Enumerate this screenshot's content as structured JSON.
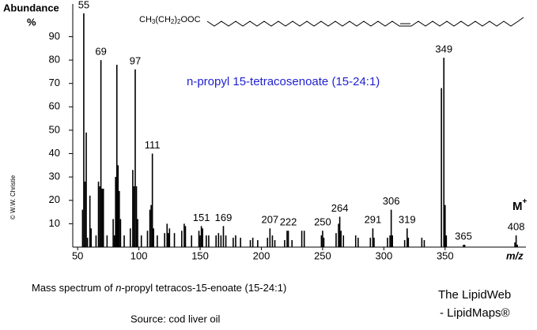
{
  "chart_data": {
    "type": "spectrum",
    "y_label": "Abundance",
    "y_unit": "%",
    "x_label": "m/z",
    "title": "n-propyl 15-tetracosenoate  (15-24:1)",
    "title_color": "#1f1fd0",
    "formula": [
      "CH",
      "3",
      "(CH",
      "2",
      ")",
      "2",
      "OOC"
    ],
    "molecular_ion": [
      "M",
      "+"
    ],
    "caption": [
      "Mass spectrum of ",
      "n",
      "-propyl tetracos-15-enoate  (15-24:1)"
    ],
    "source": "Source: cod liver oil",
    "brand": [
      "The LipidWeb",
      "- LipidMaps®"
    ],
    "copyright": "© W.W. Christie",
    "xlim": [
      46,
      416
    ],
    "ylim": [
      0,
      104
    ],
    "xticks": [
      50,
      100,
      150,
      200,
      250,
      300,
      350
    ],
    "yticks": [
      10,
      20,
      30,
      40,
      50,
      60,
      70,
      80,
      90
    ],
    "peaks": {
      "x": [
        55,
        69,
        97,
        111,
        151,
        169,
        207,
        222,
        250,
        264,
        291,
        306,
        319,
        349,
        365,
        408
      ],
      "values": [
        100,
        80,
        76,
        40,
        9,
        9,
        8,
        7,
        7,
        13,
        8,
        16,
        8,
        81,
        1,
        5
      ]
    },
    "minor_peaks": {
      "x": [
        54,
        56,
        57,
        58,
        60,
        61,
        65,
        67,
        68,
        70,
        71,
        74,
        79,
        80,
        81,
        82,
        83,
        84,
        85,
        88,
        93,
        95,
        96,
        98,
        99,
        102,
        107,
        109,
        110,
        112,
        115,
        121,
        123,
        124,
        125,
        129,
        135,
        137,
        138,
        143,
        149,
        150,
        152,
        155,
        157,
        163,
        165,
        167,
        171,
        177,
        179,
        183,
        191,
        193,
        197,
        205,
        209,
        211,
        219,
        221,
        225,
        233,
        235,
        249,
        251,
        261,
        263,
        265,
        267,
        277,
        279,
        289,
        292,
        303,
        305,
        307,
        317,
        320,
        331,
        333,
        347,
        350,
        351,
        366,
        407,
        409
      ],
      "values": [
        16,
        28,
        49,
        4,
        22,
        8,
        5,
        28,
        26,
        25,
        25,
        5,
        12,
        5,
        30,
        78,
        35,
        24,
        12,
        5,
        8,
        33,
        26,
        26,
        12,
        5,
        7,
        16,
        18,
        8,
        5,
        6,
        10,
        6,
        8,
        6,
        7,
        10,
        9,
        5,
        7,
        5,
        8,
        5,
        5,
        5,
        6,
        5,
        5,
        4,
        5,
        4,
        3,
        4,
        3,
        4,
        5,
        3,
        3,
        7,
        3,
        7,
        7,
        5,
        4,
        6,
        10,
        7,
        5,
        5,
        4,
        4,
        4,
        4,
        5,
        5,
        3,
        4,
        4,
        3,
        68,
        18,
        5,
        1,
        2,
        1
      ]
    }
  }
}
